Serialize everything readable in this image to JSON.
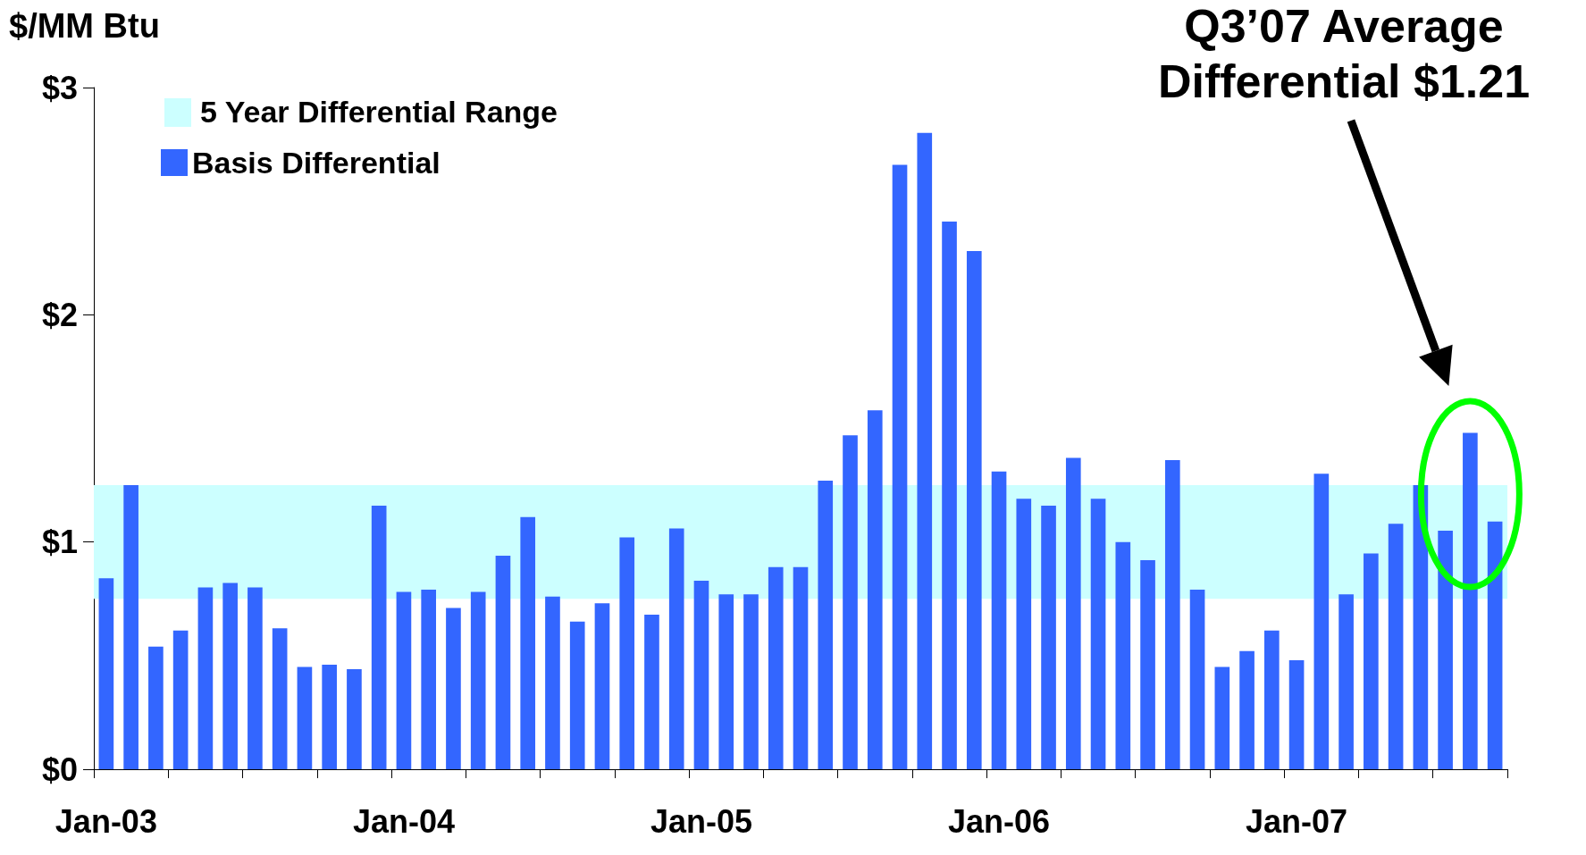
{
  "chart_data": {
    "type": "bar",
    "ylabel": "$/MM Btu",
    "categories": [
      "Jan-03",
      null,
      null,
      null,
      null,
      null,
      null,
      null,
      null,
      null,
      null,
      null,
      "Jan-04",
      null,
      null,
      null,
      null,
      null,
      null,
      null,
      null,
      null,
      null,
      null,
      "Jan-05",
      null,
      null,
      null,
      null,
      null,
      null,
      null,
      null,
      null,
      null,
      null,
      "Jan-06",
      null,
      null,
      null,
      null,
      null,
      null,
      null,
      null,
      null,
      null,
      null,
      "Jan-07",
      null,
      null,
      null,
      null,
      null,
      null,
      null,
      null
    ],
    "series": [
      {
        "name": "Basis Differential",
        "color": "#3366ff",
        "values": [
          0.84,
          1.25,
          0.54,
          0.61,
          0.8,
          0.82,
          0.8,
          0.62,
          0.45,
          0.46,
          0.44,
          1.16,
          0.78,
          0.79,
          0.71,
          0.78,
          0.94,
          1.11,
          0.76,
          0.65,
          0.73,
          1.02,
          0.68,
          1.06,
          0.83,
          0.77,
          0.77,
          0.89,
          0.89,
          1.27,
          1.47,
          1.58,
          2.66,
          2.8,
          2.41,
          2.28,
          1.31,
          1.19,
          1.16,
          1.37,
          1.19,
          1.0,
          0.92,
          1.36,
          0.79,
          0.45,
          0.52,
          0.61,
          0.48,
          1.3,
          0.77,
          0.95,
          1.08,
          1.25,
          1.05,
          1.48,
          1.09
        ]
      }
    ],
    "ylim": [
      0,
      3
    ],
    "yticks": [
      {
        "value": 0,
        "label": "$0"
      },
      {
        "value": 1,
        "label": "$1"
      },
      {
        "value": 2,
        "label": "$2"
      },
      {
        "value": 3,
        "label": "$3"
      }
    ],
    "bands": [
      {
        "axis": "y",
        "from": 0.75,
        "to": 1.25,
        "label": "5 Year Differential Range",
        "color": "#ccffff"
      }
    ],
    "annotations": [
      "Q3’07 Average Differential $1.21"
    ],
    "grid": false,
    "legend": "top left"
  }
}
